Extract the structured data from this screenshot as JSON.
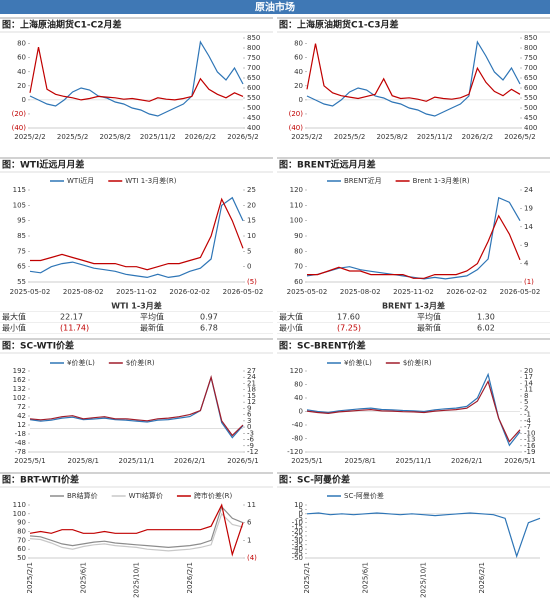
{
  "header": {
    "title": "原油市场"
  },
  "chart_data": [
    {
      "type": "line",
      "title": "图：上海原油期货C1-C2月差",
      "categories": [
        "2025/2/2",
        null,
        null,
        null,
        null,
        "2025/5/2",
        null,
        null,
        null,
        null,
        "2025/8/2",
        null,
        null,
        null,
        null,
        "2025/11/2",
        null,
        null,
        null,
        null,
        "2026/2/2",
        null,
        null,
        null,
        null,
        "2026/5/2"
      ],
      "series": [
        {
          "color": "#2e75b6",
          "axis": "y2",
          "values": [
            560,
            540,
            520,
            510,
            540,
            580,
            600,
            590,
            560,
            550,
            530,
            520,
            500,
            490,
            470,
            460,
            480,
            500,
            520,
            560,
            830,
            760,
            680,
            640,
            700,
            620
          ]
        },
        {
          "color": "#c00000",
          "values": [
            10,
            75,
            15,
            8,
            5,
            3,
            0,
            2,
            5,
            4,
            3,
            1,
            2,
            0,
            -2,
            3,
            1,
            0,
            2,
            5,
            30,
            15,
            8,
            3,
            10,
            5
          ]
        }
      ],
      "ylim": [
        -40,
        88
      ],
      "yticks": [
        {
          "value": -40,
          "label": "(40)"
        },
        {
          "value": -20,
          "label": "(20)"
        },
        0,
        20,
        40,
        60,
        80
      ],
      "y2lim": [
        400,
        850
      ],
      "y2ticks": [
        400,
        450,
        500,
        550,
        600,
        650,
        700,
        750,
        800,
        850
      ]
    },
    {
      "type": "line",
      "title": "图：上海原油期货C1-C3月差",
      "categories": [
        "2025/2/2",
        null,
        null,
        null,
        null,
        "2025/5/2",
        null,
        null,
        null,
        null,
        "2025/8/2",
        null,
        null,
        null,
        null,
        "2025/11/2",
        null,
        null,
        null,
        null,
        "2026/2/2",
        null,
        null,
        null,
        null,
        "2026/5/2"
      ],
      "series": [
        {
          "color": "#2e75b6",
          "axis": "y2",
          "values": [
            560,
            540,
            520,
            510,
            540,
            580,
            600,
            590,
            560,
            550,
            530,
            520,
            500,
            490,
            470,
            460,
            480,
            500,
            520,
            560,
            830,
            760,
            680,
            640,
            700,
            620
          ]
        },
        {
          "color": "#c00000",
          "values": [
            15,
            80,
            20,
            10,
            6,
            4,
            2,
            5,
            8,
            30,
            6,
            2,
            3,
            1,
            -2,
            4,
            2,
            1,
            3,
            8,
            45,
            25,
            12,
            6,
            15,
            8
          ]
        }
      ],
      "ylim": [
        -40,
        88
      ],
      "yticks": [
        {
          "value": -40,
          "label": "(40)"
        },
        {
          "value": -20,
          "label": "(20)"
        },
        0,
        20,
        40,
        60,
        80
      ],
      "y2lim": [
        400,
        850
      ],
      "y2ticks": [
        400,
        450,
        500,
        550,
        600,
        650,
        700,
        750,
        800,
        850
      ]
    },
    {
      "type": "line",
      "title": "图：WTI近远月月差",
      "categories": [
        "2025-05-02",
        null,
        null,
        null,
        null,
        "2025-08-02",
        null,
        null,
        null,
        null,
        "2025-11-02",
        null,
        null,
        null,
        null,
        "2026-02-02",
        null,
        null,
        null,
        null,
        "2026-05-02"
      ],
      "series": [
        {
          "name": "WTI近月",
          "color": "#2e75b6",
          "values": [
            62,
            61,
            65,
            67,
            68,
            66,
            64,
            63,
            62,
            60,
            59,
            58,
            60,
            58,
            59,
            62,
            64,
            70,
            105,
            110,
            95
          ]
        },
        {
          "name": "WTI 1-3月差(R)",
          "color": "#c00000",
          "axis": "y2",
          "values": [
            2,
            2,
            3,
            4,
            3,
            2,
            1,
            1,
            1,
            0,
            0,
            -1,
            0,
            1,
            1,
            2,
            3,
            10,
            22,
            15,
            6
          ]
        }
      ],
      "ylim": [
        55,
        115
      ],
      "yticks": [
        55,
        65,
        75,
        85,
        95,
        105,
        115
      ],
      "y2lim": [
        -5,
        25
      ],
      "y2ticks": [
        {
          "value": -5,
          "label": "(5)"
        },
        0,
        5,
        10,
        15,
        20,
        25
      ]
    },
    {
      "type": "line",
      "title": "图：BRENT近远月月差",
      "categories": [
        "2025-05-02",
        null,
        null,
        null,
        null,
        "2025-08-02",
        null,
        null,
        null,
        null,
        "2025-11-02",
        null,
        null,
        null,
        null,
        "2026-02-02",
        null,
        null,
        null,
        null,
        "2026-05-02"
      ],
      "series": [
        {
          "name": "BRENT近月",
          "color": "#2e75b6",
          "values": [
            64,
            65,
            67,
            69,
            70,
            68,
            67,
            66,
            65,
            64,
            63,
            62,
            63,
            62,
            63,
            64,
            68,
            75,
            115,
            112,
            100
          ]
        },
        {
          "name": "Brent 1-3月差(R)",
          "color": "#c00000",
          "axis": "y2",
          "values": [
            1,
            1,
            2,
            3,
            2,
            2,
            1,
            1,
            1,
            1,
            0,
            0,
            1,
            1,
            1,
            2,
            4,
            10,
            17,
            12,
            5
          ]
        }
      ],
      "ylim": [
        60,
        120
      ],
      "yticks": [
        60,
        70,
        80,
        90,
        100,
        110,
        120
      ],
      "y2lim": [
        -1,
        24
      ],
      "y2ticks": [
        {
          "value": -1,
          "label": "(1)"
        },
        4,
        9,
        14,
        19,
        24
      ]
    },
    {
      "type": "line",
      "title": "图：SC-WTI价差",
      "categories": [
        "2025/5/1",
        null,
        null,
        null,
        null,
        "2025/8/1",
        null,
        null,
        null,
        null,
        "2025/11/1",
        null,
        null,
        null,
        null,
        "2026/2/1",
        null,
        null,
        null,
        null,
        "2026/5/1"
      ],
      "series": [
        {
          "name": "¥价差(L)",
          "color": "#2e75b6",
          "values": [
            30,
            25,
            28,
            35,
            38,
            30,
            32,
            35,
            30,
            28,
            25,
            22,
            28,
            30,
            35,
            40,
            60,
            170,
            20,
            -30,
            10
          ]
        },
        {
          "name": "$价差(R)",
          "color": "#a01c2a",
          "axis": "y2",
          "values": [
            4,
            3.5,
            4,
            5,
            5.5,
            4,
            4.5,
            5,
            4,
            4,
            3.5,
            3,
            4,
            4.3,
            5,
            6,
            8,
            24,
            3,
            -4,
            1
          ]
        }
      ],
      "ylim": [
        -78,
        192
      ],
      "yticks": [
        -78,
        -48,
        -18,
        12,
        42,
        72,
        102,
        132,
        162,
        192
      ],
      "y2lim": [
        -12,
        27
      ],
      "y2ticks": [
        -12,
        -9,
        -6,
        -3,
        0,
        3,
        6,
        9,
        12,
        15,
        18,
        21,
        24,
        27
      ]
    },
    {
      "type": "line",
      "title": "图：SC-BRENT价差",
      "categories": [
        "2025/5/1",
        null,
        null,
        null,
        null,
        "2025/8/1",
        null,
        null,
        null,
        null,
        "2025/11/1",
        null,
        null,
        null,
        null,
        "2026/2/1",
        null,
        null,
        null,
        null,
        "2026/5/1"
      ],
      "series": [
        {
          "name": "¥价差(L)",
          "color": "#2e75b6",
          "values": [
            5,
            0,
            -3,
            2,
            5,
            8,
            10,
            6,
            5,
            3,
            2,
            0,
            5,
            8,
            10,
            15,
            40,
            110,
            -20,
            -100,
            -60
          ]
        },
        {
          "name": "$价差(R)",
          "color": "#a01c2a",
          "axis": "y2",
          "values": [
            0.7,
            0,
            -0.4,
            0.3,
            0.7,
            1.1,
            1.4,
            0.8,
            0.7,
            0.4,
            0.3,
            0,
            0.7,
            1.1,
            1.4,
            2.1,
            5.5,
            15,
            -2.8,
            -14,
            -8.3
          ]
        }
      ],
      "ylim": [
        -120,
        120
      ],
      "yticks": [
        -120,
        -80,
        -40,
        0,
        40,
        80,
        120
      ],
      "y2lim": [
        -19,
        20
      ],
      "y2ticks": [
        -19,
        -16,
        -13,
        -10,
        -7,
        -4,
        -1,
        2,
        5,
        8,
        11,
        14,
        17,
        20
      ]
    },
    {
      "type": "line",
      "title": "图：BRT-WTI价差",
      "categories": [
        "2025/2/1",
        null,
        null,
        null,
        null,
        "2025/6/1",
        null,
        null,
        null,
        null,
        "2025/10/1",
        null,
        null,
        null,
        null,
        "2026/2/1",
        null,
        null,
        null,
        null,
        null
      ],
      "series": [
        {
          "name": "BR结算价",
          "color": "#8c8c8c",
          "values": [
            75,
            74,
            70,
            66,
            64,
            66,
            68,
            69,
            67,
            66,
            65,
            64,
            63,
            62,
            63,
            64,
            66,
            70,
            108,
            95,
            90
          ]
        },
        {
          "name": "WTI结算价",
          "color": "#c8c8c8",
          "values": [
            72,
            71,
            67,
            62,
            60,
            63,
            65,
            66,
            64,
            63,
            62,
            60,
            59,
            58,
            59,
            60,
            62,
            65,
            100,
            88,
            85
          ]
        },
        {
          "name": "跨市价差(R)",
          "color": "#c00000",
          "axis": "y2",
          "values": [
            3,
            3.5,
            3,
            4,
            4,
            3,
            3,
            3.5,
            3,
            3,
            3,
            4,
            4,
            4,
            4,
            4,
            4,
            5,
            11,
            -3,
            6
          ]
        }
      ],
      "ylim": [
        50,
        110
      ],
      "yticks": [
        50,
        60,
        70,
        80,
        90,
        100,
        110
      ],
      "y2lim": [
        -4,
        11
      ],
      "y2ticks": [
        {
          "value": -4,
          "label": "(4)"
        },
        1,
        6,
        11
      ]
    },
    {
      "type": "line",
      "title": "图：SC-阿曼价差",
      "categories": [
        "2025/2/1",
        null,
        null,
        null,
        null,
        "2025/6/1",
        null,
        null,
        null,
        null,
        "2025/10/1",
        null,
        null,
        null,
        null,
        "2026/2/1",
        null,
        null,
        null,
        null,
        null
      ],
      "series": [
        {
          "name": "SC-阿曼价差",
          "color": "#2e75b6",
          "values": [
            0,
            1,
            -1,
            0,
            -1,
            0,
            1,
            0,
            -1,
            0,
            -1,
            -2,
            -1,
            0,
            1,
            0,
            -1,
            -5,
            -48,
            -10,
            -5
          ]
        }
      ],
      "ylim": [
        -50,
        10
      ],
      "yticks": [
        -50,
        -45,
        -40,
        -35,
        -30,
        -25,
        -20,
        -15,
        -10,
        -5,
        0,
        5,
        10
      ]
    }
  ],
  "tables": [
    {
      "title": "WTI 1-3月差",
      "rows": [
        [
          "最大值",
          "22.17",
          "平均值",
          "0.97"
        ],
        [
          "最小值",
          "(11.74)",
          "最新值",
          "6.78"
        ]
      ]
    },
    {
      "title": "BRENT 1-3月差",
      "rows": [
        [
          "最大值",
          "17.60",
          "平均值",
          "1.30"
        ],
        [
          "最小值",
          "(7.25)",
          "最新值",
          "6.02"
        ]
      ]
    }
  ]
}
